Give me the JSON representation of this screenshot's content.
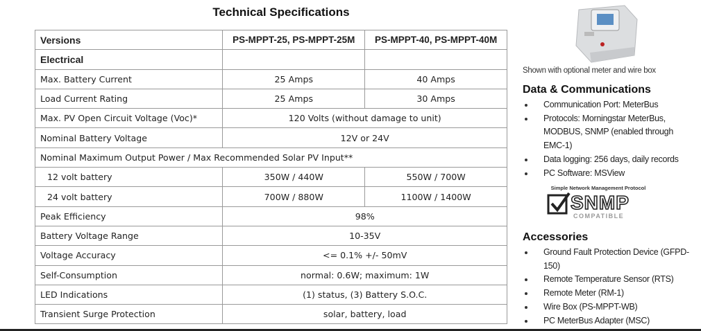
{
  "header": {
    "title": "Technical Specifications"
  },
  "table": {
    "rows": [
      [
        "Versions",
        "PS-MPPT-25, PS-MPPT-25M",
        "PS-MPPT-40, PS-MPPT-40M"
      ],
      [
        "Electrical"
      ],
      [
        "Max. Battery Current",
        "25 Amps",
        "40 Amps"
      ],
      [
        "Load Current Rating",
        "25 Amps",
        "30 Amps"
      ],
      [
        "Max. PV Open Circuit Voltage (Voc)*",
        "120 Volts (without damage to unit)"
      ],
      [
        "Nominal Battery Voltage",
        "12V or 24V"
      ],
      [
        "Nominal Maximum Output Power / Max Recommended Solar PV Input**"
      ],
      [
        "12 volt battery",
        "350W / 440W",
        "550W / 700W"
      ],
      [
        "24 volt battery",
        "700W / 880W",
        "1100W / 1400W"
      ],
      [
        "Peak Efficiency",
        "98%"
      ],
      [
        "Battery Voltage Range",
        "10-35V"
      ],
      [
        "Voltage Accuracy",
        "<= 0.1% +/- 50mV"
      ],
      [
        "Self-Consumption",
        "normal: 0.6W; maximum: 1W"
      ],
      [
        "LED Indications",
        "(1) status, (3) Battery S.O.C."
      ],
      [
        "Transient Surge Protection",
        "solar, battery, load"
      ]
    ]
  },
  "sidebar": {
    "caption": "Shown with optional meter and wire box",
    "data_comms": {
      "title": "Data & Communications",
      "items": [
        "Communication Port: MeterBus",
        "Protocols: Morningstar MeterBus, MODBUS, SNMP (enabled through EMC-1)",
        "Data logging: 256 days, daily records",
        "PC Software: MSView"
      ]
    },
    "snmp_logo": {
      "tagline": "Simple Network Management Protocol",
      "name": "SNMP",
      "badge": "COMPATIBLE"
    },
    "accessories": {
      "title": "Accessories",
      "items": [
        "Ground Fault Protection Device (GFPD-150)",
        "Remote Temperature Sensor (RTS)",
        "Remote Meter (RM-1)",
        "Wire Box (PS-MPPT-WB)",
        "PC MeterBus Adapter (MSC)"
      ]
    }
  }
}
